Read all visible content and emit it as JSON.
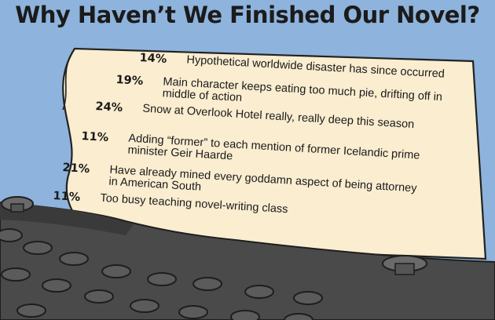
{
  "title": "Why Haven’t We Finished Our Novel?",
  "colors": {
    "background": "#8eb3dc",
    "paper": "#faedd0",
    "typewriter": "#4a4a4a",
    "text": "#1a1a1a"
  },
  "chart_data": {
    "type": "table",
    "title": "Why Haven’t We Finished Our Novel?",
    "categories": [
      "Hypothetical worldwide disaster has since occurred",
      "Main character keeps eating too much pie, drifting off in middle of action",
      "Snow at Overlook Hotel really, really deep this season",
      "Adding “former” to each mention of former Icelandic prime minister Geir Haarde",
      "Have already mined every goddamn aspect of being attorney in American South",
      "Too busy teaching novel-writing class"
    ],
    "values": [
      14,
      19,
      24,
      11,
      21,
      11
    ],
    "unit": "%",
    "rows": [
      {
        "percent": "14%",
        "line1": "Hypothetical worldwide disaster has since occurred",
        "line2": ""
      },
      {
        "percent": "19%",
        "line1": "Main character keeps eating too much pie, drifting off in",
        "line2": "middle of action"
      },
      {
        "percent": "24%",
        "line1": "Snow at Overlook Hotel really, really deep this season",
        "line2": ""
      },
      {
        "percent": "11%",
        "line1": "Adding “former” to each mention of former Icelandic prime",
        "line2": "minister Geir Haarde"
      },
      {
        "percent": "21%",
        "line1": "Have already mined every goddamn aspect of being attorney",
        "line2": "in American South"
      },
      {
        "percent": "11%",
        "line1": "Too busy teaching novel-writing class",
        "line2": ""
      }
    ]
  }
}
